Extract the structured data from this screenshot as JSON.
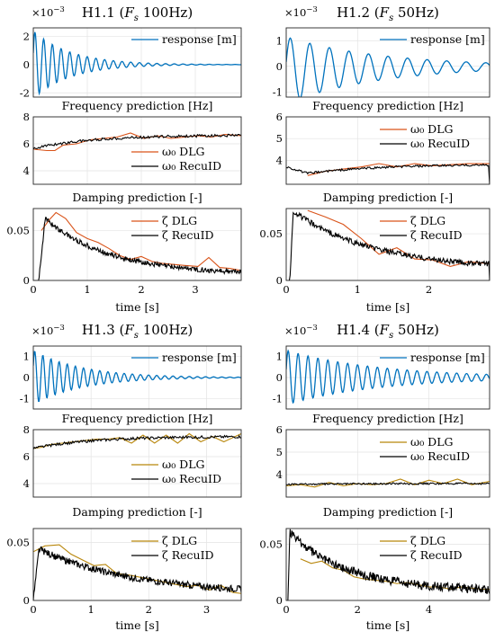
{
  "figure": {
    "panels": [
      {
        "title_prefix": "H1.1 (",
        "title_fs": "F",
        "title_fs_sub": "s",
        "title_suffix": " 100Hz)",
        "exponent": {
          "base": "×10",
          "power": "−3"
        },
        "response_legend": "response [m]",
        "frequency_title": "Frequency prediction [Hz]",
        "damping_title": "Damping prediction [-]",
        "xlabel": "time [s]",
        "response_ticks": [
          "-2",
          "0",
          "2"
        ],
        "frequency_ticks": [
          "4",
          "6",
          "8"
        ],
        "damping_ticks": [
          "0",
          "0.05"
        ],
        "time_ticks": [
          "0",
          "1",
          "2",
          "3"
        ],
        "legend_dlg_freq": "ω₀ DLG",
        "legend_recu_freq": "ω₀ RecuID",
        "legend_dlg_damp": "ζ DLG",
        "legend_recu_damp": "ζ RecuID",
        "dlg_color": "#D95319"
      },
      {
        "title_prefix": "H1.2 (",
        "title_fs": "F",
        "title_fs_sub": "s",
        "title_suffix": " 50Hz)",
        "exponent": {
          "base": "×10",
          "power": "−3"
        },
        "response_legend": "response [m]",
        "frequency_title": "Frequency prediction [Hz]",
        "damping_title": "Damping prediction [-]",
        "xlabel": "time [s]",
        "response_ticks": [
          "-1",
          "0",
          "1"
        ],
        "frequency_ticks": [
          "4",
          "5",
          "6"
        ],
        "damping_ticks": [
          "0",
          "0.05"
        ],
        "time_ticks": [
          "0",
          "1",
          "2"
        ],
        "legend_dlg_freq": "ω₀ DLG",
        "legend_recu_freq": "ω₀ RecuID",
        "legend_dlg_damp": "ζ DLG",
        "legend_recu_damp": "ζ RecuID",
        "dlg_color": "#D95319"
      },
      {
        "title_prefix": "H1.3 (",
        "title_fs": "F",
        "title_fs_sub": "s",
        "title_suffix": " 100Hz)",
        "exponent": {
          "base": "×10",
          "power": "−3"
        },
        "response_legend": "response [m]",
        "frequency_title": "Frequency prediction [Hz]",
        "damping_title": "Damping prediction [-]",
        "xlabel": "time [s]",
        "response_ticks": [
          "-1",
          "0",
          "1"
        ],
        "frequency_ticks": [
          "4",
          "6",
          "8"
        ],
        "damping_ticks": [
          "0",
          "0.05"
        ],
        "time_ticks": [
          "0",
          "1",
          "2",
          "3"
        ],
        "legend_dlg_freq": "ω₀ DLG",
        "legend_recu_freq": "ω₀ RecuID",
        "legend_dlg_damp": "ζ DLG",
        "legend_recu_damp": "ζ RecuID",
        "dlg_color": "#B8860B"
      },
      {
        "title_prefix": "H1.4 (",
        "title_fs": "F",
        "title_fs_sub": "s",
        "title_suffix": " 50Hz)",
        "exponent": {
          "base": "×10",
          "power": "−3"
        },
        "response_legend": "response [m]",
        "frequency_title": "Frequency prediction [Hz]",
        "damping_title": "Damping prediction [-]",
        "xlabel": "time [s]",
        "response_ticks": [
          "-1",
          "0",
          "1"
        ],
        "frequency_ticks": [
          "4",
          "5",
          "6"
        ],
        "damping_ticks": [
          "0",
          "0.05"
        ],
        "time_ticks": [
          "0",
          "2",
          "4"
        ],
        "legend_dlg_freq": "ω₀ DLG",
        "legend_recu_freq": "ω₀ RecuID",
        "legend_dlg_damp": "ζ DLG",
        "legend_recu_damp": "ζ RecuID",
        "dlg_color": "#B8860B"
      }
    ]
  },
  "chart_data": [
    {
      "panel": "H1.1",
      "type": "line",
      "subplot": "response",
      "xlim": [
        0,
        3.85
      ],
      "ylim": [
        -2.3,
        2.6
      ],
      "grid": true,
      "legend_position": "top-right",
      "series": [
        {
          "name": "response [m]",
          "color": "#0072BD",
          "signal": {
            "amplitude": 2.4,
            "decay_rate": 1.45,
            "frequency_hz": 6.2,
            "phase_shift": 0.35,
            "n_samples": 385
          }
        }
      ]
    },
    {
      "panel": "H1.1",
      "type": "line",
      "subplot": "frequency",
      "xlim": [
        0,
        3.85
      ],
      "ylim": [
        3,
        8
      ],
      "grid": true,
      "legend_position": "bottom-right",
      "series": [
        {
          "name": "ω₀ DLG",
          "color": "#D95319",
          "x": [
            0.0,
            0.25,
            0.4,
            0.55,
            0.8,
            1.05,
            1.3,
            1.55,
            1.8,
            2.05,
            2.3,
            2.55,
            2.8,
            3.05,
            3.3,
            3.55,
            3.85
          ],
          "y": [
            5.6,
            5.5,
            5.5,
            5.9,
            6.0,
            6.3,
            6.4,
            6.5,
            6.8,
            6.4,
            6.6,
            6.4,
            6.5,
            6.6,
            6.5,
            6.7,
            6.6
          ]
        },
        {
          "name": "ω₀ RecuID",
          "color": "#000000",
          "trend": {
            "start": 5.65,
            "end": 6.65,
            "time_constant_s": 1.1,
            "noise": 0.1,
            "n_samples": 190
          }
        }
      ]
    },
    {
      "panel": "H1.1",
      "type": "line",
      "subplot": "damping",
      "xlim": [
        0,
        3.85
      ],
      "ylim": [
        0,
        0.072
      ],
      "grid": true,
      "legend_position": "top-right",
      "series": [
        {
          "name": "ζ DLG",
          "color": "#D95319",
          "x": [
            0.15,
            0.3,
            0.42,
            0.6,
            0.8,
            1.0,
            1.2,
            1.4,
            1.6,
            1.8,
            2.0,
            2.2,
            2.4,
            2.6,
            2.8,
            3.05,
            3.25,
            3.45,
            3.65,
            3.85
          ],
          "y": [
            0.05,
            0.061,
            0.068,
            0.062,
            0.048,
            0.042,
            0.038,
            0.032,
            0.025,
            0.021,
            0.024,
            0.019,
            0.017,
            0.016,
            0.015,
            0.014,
            0.023,
            0.013,
            0.012,
            0.01
          ]
        },
        {
          "name": "ζ RecuID",
          "color": "#000000",
          "trend": {
            "onset_s": 0.1,
            "peak": 0.062,
            "peak_time_s": 0.22,
            "end": 0.006,
            "decay_rate": 0.85,
            "noise": 0.0025,
            "n_samples": 320
          }
        }
      ]
    },
    {
      "panel": "H1.2",
      "type": "line",
      "subplot": "response",
      "xlim": [
        0,
        2.85
      ],
      "ylim": [
        -1.2,
        1.5
      ],
      "grid": true,
      "legend_position": "top-right",
      "series": [
        {
          "name": "response [m]",
          "color": "#0072BD",
          "signal": {
            "amplitude": 1.3,
            "decay_rate": 0.75,
            "frequency_hz": 3.65,
            "phase_shift": 0.25,
            "offset": -0.15,
            "n_samples": 300
          }
        }
      ]
    },
    {
      "panel": "H1.2",
      "type": "line",
      "subplot": "frequency",
      "xlim": [
        0,
        2.85
      ],
      "ylim": [
        2.9,
        6.0
      ],
      "grid": true,
      "legend_position": "top-right",
      "series": [
        {
          "name": "ω₀ DLG",
          "color": "#D95319",
          "x": [
            0.3,
            0.55,
            0.8,
            1.05,
            1.3,
            1.55,
            1.8,
            2.05,
            2.3,
            2.55,
            2.85
          ],
          "y": [
            3.3,
            3.5,
            3.6,
            3.7,
            3.85,
            3.7,
            3.85,
            3.75,
            3.8,
            3.85,
            3.85
          ]
        },
        {
          "name": "ω₀ RecuID",
          "color": "#000000",
          "trend": {
            "start": 3.7,
            "mid": 3.4,
            "end": 3.82,
            "time_constant_s": 1.0,
            "noise": 0.05,
            "drop_at_end": 2.9,
            "n_samples": 190
          }
        }
      ]
    },
    {
      "panel": "H1.2",
      "type": "line",
      "subplot": "damping",
      "xlim": [
        0,
        2.85
      ],
      "ylim": [
        0,
        0.077
      ],
      "grid": true,
      "legend_position": "top-right",
      "series": [
        {
          "name": "ζ DLG",
          "color": "#D95319",
          "x": [
            0.3,
            0.55,
            0.8,
            1.05,
            1.3,
            1.55,
            1.8,
            2.05,
            2.3,
            2.55,
            2.85
          ],
          "y": [
            0.075,
            0.068,
            0.06,
            0.045,
            0.028,
            0.035,
            0.023,
            0.022,
            0.015,
            0.02,
            0.018
          ]
        },
        {
          "name": "ζ RecuID",
          "color": "#000000",
          "trend": {
            "onset_s": 0.05,
            "peak": 0.074,
            "peak_time_s": 0.1,
            "end": 0.012,
            "decay_rate": 0.9,
            "noise": 0.003,
            "drop_at_end": 0.0,
            "n_samples": 260
          }
        }
      ]
    },
    {
      "panel": "H1.3",
      "type": "line",
      "subplot": "response",
      "xlim": [
        0,
        3.6
      ],
      "ylim": [
        -1.5,
        1.5
      ],
      "grid": true,
      "legend_position": "top-right",
      "series": [
        {
          "name": "response [m]",
          "color": "#0072BD",
          "signal": {
            "amplitude": 1.3,
            "decay_rate": 1.2,
            "frequency_hz": 7.1,
            "phase_shift": 0.45,
            "n_samples": 360
          }
        }
      ]
    },
    {
      "panel": "H1.3",
      "type": "line",
      "subplot": "frequency",
      "xlim": [
        0,
        3.6
      ],
      "ylim": [
        3,
        8
      ],
      "grid": true,
      "legend_position": "bottom-right",
      "series": [
        {
          "name": "ω₀ DLG",
          "color": "#B8860B",
          "x": [
            0.0,
            0.15,
            0.3,
            0.5,
            0.7,
            0.9,
            1.1,
            1.3,
            1.5,
            1.7,
            1.9,
            2.1,
            2.3,
            2.5,
            2.7,
            2.9,
            3.1,
            3.3,
            3.6
          ],
          "y": [
            6.6,
            6.7,
            6.9,
            7.0,
            7.1,
            7.2,
            7.3,
            7.3,
            7.4,
            7.0,
            7.6,
            7.0,
            7.6,
            7.0,
            7.7,
            7.1,
            7.5,
            7.1,
            7.7
          ]
        },
        {
          "name": "ω₀ RecuID",
          "color": "#000000",
          "trend": {
            "start": 6.6,
            "end": 7.5,
            "time_constant_s": 1.0,
            "noise": 0.1,
            "n_samples": 200
          }
        }
      ]
    },
    {
      "panel": "H1.3",
      "type": "line",
      "subplot": "damping",
      "xlim": [
        0,
        3.6
      ],
      "ylim": [
        0,
        0.062
      ],
      "grid": true,
      "legend_position": "top-right",
      "series": [
        {
          "name": "ζ DLG",
          "color": "#B8860B",
          "x": [
            0.0,
            0.2,
            0.45,
            0.65,
            0.85,
            1.05,
            1.25,
            1.45,
            1.65,
            1.85,
            2.05,
            2.25,
            2.45,
            2.65,
            2.85,
            3.05,
            3.25,
            3.45,
            3.6
          ],
          "y": [
            0.042,
            0.047,
            0.048,
            0.04,
            0.035,
            0.03,
            0.031,
            0.023,
            0.022,
            0.02,
            0.018,
            0.016,
            0.014,
            0.012,
            0.013,
            0.009,
            0.013,
            0.007,
            0.006
          ]
        },
        {
          "name": "ζ RecuID",
          "color": "#000000",
          "trend": {
            "onset_s": 0.0,
            "peak": 0.044,
            "peak_time_s": 0.1,
            "end": 0.005,
            "decay_rate": 0.6,
            "noise": 0.003,
            "n_samples": 330
          }
        }
      ]
    },
    {
      "panel": "H1.4",
      "type": "line",
      "subplot": "response",
      "xlim": [
        0,
        5.7
      ],
      "ylim": [
        -1.5,
        1.5
      ],
      "grid": true,
      "legend_position": "top-right",
      "series": [
        {
          "name": "response [m]",
          "color": "#0072BD",
          "signal": {
            "amplitude": 1.3,
            "decay_rate": 0.38,
            "frequency_hz": 3.6,
            "phase_shift": 0.3,
            "n_samples": 420
          }
        }
      ]
    },
    {
      "panel": "H1.4",
      "type": "line",
      "subplot": "frequency",
      "xlim": [
        0,
        5.7
      ],
      "ylim": [
        3,
        6
      ],
      "grid": true,
      "legend_position": "top-right",
      "series": [
        {
          "name": "ω₀ DLG",
          "color": "#B8860B",
          "x": [
            0.0,
            0.4,
            0.8,
            1.2,
            1.6,
            2.0,
            2.4,
            2.8,
            3.2,
            3.6,
            4.0,
            4.4,
            4.8,
            5.2,
            5.7
          ],
          "y": [
            3.5,
            3.55,
            3.45,
            3.65,
            3.5,
            3.6,
            3.55,
            3.6,
            3.8,
            3.55,
            3.75,
            3.6,
            3.8,
            3.55,
            3.7
          ]
        },
        {
          "name": "ω₀ RecuID",
          "color": "#000000",
          "trend": {
            "start": 3.55,
            "end": 3.6,
            "time_constant_s": 1.0,
            "noise": 0.04,
            "n_samples": 220
          }
        }
      ]
    },
    {
      "panel": "H1.4",
      "type": "line",
      "subplot": "damping",
      "xlim": [
        0,
        5.7
      ],
      "ylim": [
        0,
        0.064
      ],
      "grid": true,
      "legend_position": "top-right",
      "series": [
        {
          "name": "ζ DLG",
          "color": "#B8860B",
          "x": [
            0.4,
            0.7,
            1.0,
            1.3,
            1.6,
            1.9,
            2.2,
            2.5,
            2.8,
            3.1,
            3.4,
            3.7,
            4.0,
            4.3,
            4.6,
            4.9,
            5.2,
            5.5,
            5.7
          ],
          "y": [
            0.037,
            0.033,
            0.035,
            0.029,
            0.027,
            0.021,
            0.019,
            0.018,
            0.017,
            0.015,
            0.016,
            0.014,
            0.012,
            0.012,
            0.01,
            0.012,
            0.011,
            0.01,
            0.01
          ]
        },
        {
          "name": "ζ RecuID",
          "color": "#000000",
          "trend": {
            "onset_s": 0.05,
            "peak": 0.06,
            "peak_time_s": 0.1,
            "end": 0.008,
            "decay_rate": 0.6,
            "noise": 0.004,
            "n_samples": 360
          }
        }
      ]
    }
  ]
}
